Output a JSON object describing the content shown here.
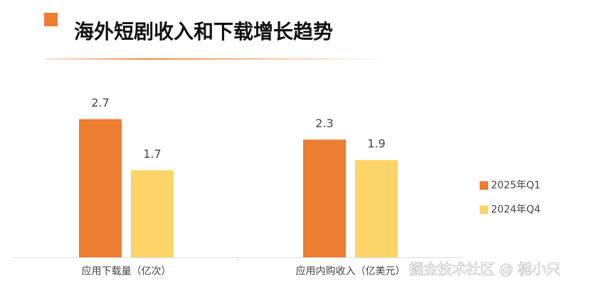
{
  "chart_data": {
    "type": "bar",
    "title": "海外短剧收入和下载增长趋势",
    "categories": [
      "应用下载量（亿次）",
      "应用内购收入（亿美元）"
    ],
    "series": [
      {
        "name": "2025年Q1",
        "color": "#ed7d31",
        "values": [
          2.7,
          2.3
        ]
      },
      {
        "name": "2024年Q4",
        "color": "#fdd468",
        "values": [
          1.7,
          1.9
        ]
      }
    ],
    "ylim": [
      0,
      3
    ],
    "legend": "right",
    "grid": false
  },
  "watermark": "掘金技术社区 @ 栀小只"
}
